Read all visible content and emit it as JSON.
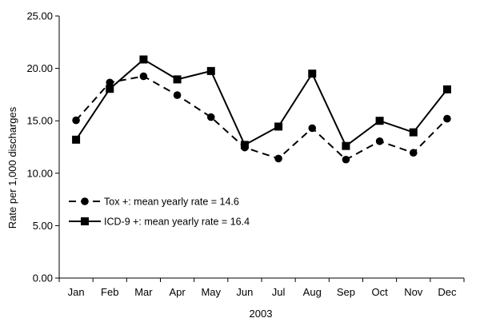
{
  "chart_data": {
    "type": "line",
    "categories": [
      "Jan",
      "Feb",
      "Mar",
      "Apr",
      "May",
      "Jun",
      "Jul",
      "Aug",
      "Sep",
      "Oct",
      "Nov",
      "Dec"
    ],
    "xlabel": "2003",
    "ylabel": "Rate per 1,000 discharges",
    "ylim": [
      0,
      25
    ],
    "yticks": [
      "0.00",
      "5.00",
      "10.00",
      "15.00",
      "20.00",
      "25.00"
    ],
    "grid": false,
    "legend_position": "center-left",
    "series": [
      {
        "name": "Tox +: mean yearly rate = 14.6",
        "marker": "circle",
        "line_style": "dashed",
        "color": "#000000",
        "values": [
          15.05,
          18.65,
          19.25,
          17.45,
          15.35,
          12.45,
          11.4,
          14.3,
          11.3,
          13.05,
          11.95,
          15.2
        ]
      },
      {
        "name": "ICD-9 +: mean yearly rate = 16.4",
        "marker": "square",
        "line_style": "solid",
        "color": "#000000",
        "values": [
          13.2,
          18.05,
          20.85,
          18.95,
          19.75,
          12.7,
          14.45,
          19.5,
          12.6,
          15.0,
          13.9,
          18.0
        ]
      }
    ]
  }
}
